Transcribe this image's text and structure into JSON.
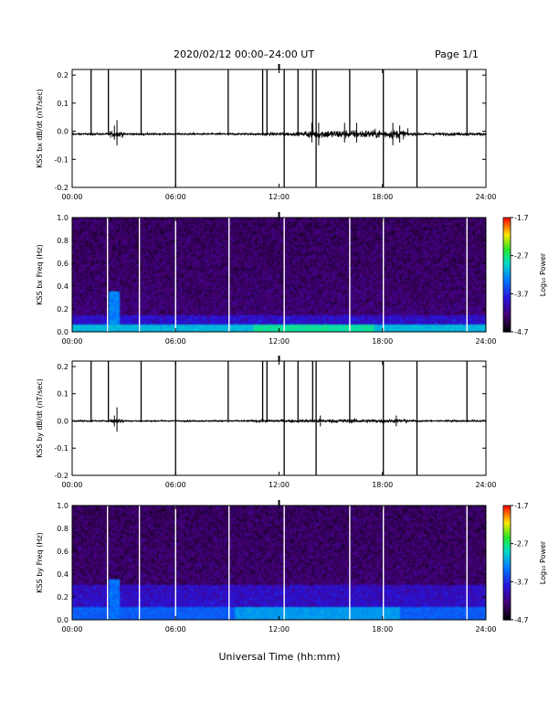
{
  "header": {
    "title": "2020/02/12  00:00–24:00 UT",
    "page": "Page 1/1"
  },
  "xaxis_label": "Universal Time (hh:mm)",
  "colorbar": {
    "label": "Log₁₀ Power",
    "ticks": [
      "-1.7",
      "-2.7",
      "-3.7",
      "-4.7"
    ],
    "range": [
      -4.7,
      -1.7
    ]
  },
  "chart_data": [
    {
      "type": "line",
      "panel": "bx-timeseries",
      "ylabel": "KSS bx dB/dt (nT/sec)",
      "xlim": [
        0,
        24
      ],
      "ylim": [
        -0.2,
        0.22
      ],
      "xticks": [
        "00:00",
        "06:00",
        "12:00",
        "18:00",
        "24:00"
      ],
      "yticks": [
        "0.2",
        "0.1",
        "0.0",
        "-0.1",
        "-0.2"
      ],
      "baseline": -0.01,
      "noise_profile": [
        {
          "from": 0.0,
          "to": 2.2,
          "amp": 0.004
        },
        {
          "from": 2.2,
          "to": 3.0,
          "amp": 0.012
        },
        {
          "from": 3.0,
          "to": 11.0,
          "amp": 0.004
        },
        {
          "from": 11.0,
          "to": 13.5,
          "amp": 0.007
        },
        {
          "from": 13.5,
          "to": 19.5,
          "amp": 0.016
        },
        {
          "from": 19.5,
          "to": 24.0,
          "amp": 0.006
        }
      ],
      "spikes": [
        {
          "t": 2.6,
          "min": -0.05,
          "max": 0.04
        },
        {
          "t": 2.45,
          "min": -0.03,
          "max": 0.02
        },
        {
          "t": 13.9,
          "min": -0.04,
          "max": 0.03
        },
        {
          "t": 14.3,
          "min": -0.05,
          "max": 0.03
        },
        {
          "t": 15.8,
          "min": -0.04,
          "max": 0.03
        },
        {
          "t": 16.5,
          "min": -0.04,
          "max": 0.03
        },
        {
          "t": 18.6,
          "min": -0.05,
          "max": 0.03
        },
        {
          "t": 19.0,
          "min": -0.04,
          "max": 0.02
        }
      ],
      "vlines": [
        {
          "t": 1.1,
          "min": -0.015,
          "max": 0.22
        },
        {
          "t": 2.1,
          "min": -0.015,
          "max": 0.22
        },
        {
          "t": 4.0,
          "min": -0.015,
          "max": 0.22
        },
        {
          "t": 6.0,
          "min": -0.2,
          "max": 0.22
        },
        {
          "t": 9.05,
          "min": -0.015,
          "max": 0.22
        },
        {
          "t": 11.05,
          "min": -0.015,
          "max": 0.22
        },
        {
          "t": 11.3,
          "min": -0.015,
          "max": 0.22
        },
        {
          "t": 12.3,
          "min": -0.2,
          "max": 0.22
        },
        {
          "t": 13.1,
          "min": -0.015,
          "max": 0.22
        },
        {
          "t": 13.95,
          "min": -0.015,
          "max": 0.22
        },
        {
          "t": 14.15,
          "min": -0.2,
          "max": 0.22
        },
        {
          "t": 16.1,
          "min": -0.015,
          "max": 0.22
        },
        {
          "t": 18.05,
          "min": -0.2,
          "max": 0.22
        },
        {
          "t": 20.0,
          "min": -0.2,
          "max": 0.22
        },
        {
          "t": 22.9,
          "min": -0.015,
          "max": 0.22
        }
      ]
    },
    {
      "type": "heatmap",
      "panel": "bx-spectrogram",
      "ylabel": "KSS bx Freq (Hz)",
      "xlim": [
        0,
        24
      ],
      "ylim": [
        0,
        1.0
      ],
      "xticks": [
        "00:00",
        "06:00",
        "12:00",
        "18:00",
        "24:00"
      ],
      "yticks": [
        "1.0",
        "0.8",
        "0.6",
        "0.4",
        "0.2",
        "0.0"
      ],
      "zlim": [
        -4.7,
        -1.7
      ],
      "gaps": [
        2.05,
        3.9,
        6.0,
        9.1,
        12.3,
        16.1,
        18.05,
        22.9
      ],
      "low_freq_band": {
        "max_freq": 0.06,
        "level": -2.8,
        "strong_from": 10.5,
        "strong_to": 17.5
      },
      "burst": {
        "t_from": 2.1,
        "t_to": 2.75,
        "max_freq": 0.35,
        "level": -3.3
      }
    },
    {
      "type": "line",
      "panel": "by-timeseries",
      "ylabel": "KSS by dB/dt (nT/sec)",
      "xlim": [
        0,
        24
      ],
      "ylim": [
        -0.2,
        0.22
      ],
      "xticks": [
        "00:00",
        "06:00",
        "12:00",
        "18:00",
        "24:00"
      ],
      "yticks": [
        "0.2",
        "0.1",
        "0.0",
        "-0.1",
        "-0.2"
      ],
      "baseline": 0.0,
      "noise_profile": [
        {
          "from": 0.0,
          "to": 2.2,
          "amp": 0.003
        },
        {
          "from": 2.2,
          "to": 3.0,
          "amp": 0.01
        },
        {
          "from": 3.0,
          "to": 10.5,
          "amp": 0.003
        },
        {
          "from": 10.5,
          "to": 13.5,
          "amp": 0.006
        },
        {
          "from": 13.5,
          "to": 19.5,
          "amp": 0.008
        },
        {
          "from": 19.5,
          "to": 24.0,
          "amp": 0.004
        }
      ],
      "spikes": [
        {
          "t": 2.6,
          "min": -0.04,
          "max": 0.05
        },
        {
          "t": 2.45,
          "min": -0.02,
          "max": 0.02
        },
        {
          "t": 14.4,
          "min": -0.02,
          "max": 0.02
        },
        {
          "t": 18.8,
          "min": -0.02,
          "max": 0.02
        }
      ],
      "vlines": [
        {
          "t": 1.1,
          "min": -0.005,
          "max": 0.22
        },
        {
          "t": 2.1,
          "min": -0.005,
          "max": 0.22
        },
        {
          "t": 4.0,
          "min": -0.005,
          "max": 0.22
        },
        {
          "t": 6.0,
          "min": -0.2,
          "max": 0.22
        },
        {
          "t": 9.05,
          "min": -0.005,
          "max": 0.22
        },
        {
          "t": 11.05,
          "min": -0.005,
          "max": 0.22
        },
        {
          "t": 11.3,
          "min": -0.005,
          "max": 0.22
        },
        {
          "t": 12.3,
          "min": -0.2,
          "max": 0.22
        },
        {
          "t": 13.1,
          "min": -0.005,
          "max": 0.22
        },
        {
          "t": 13.95,
          "min": -0.005,
          "max": 0.22
        },
        {
          "t": 14.15,
          "min": -0.2,
          "max": 0.22
        },
        {
          "t": 16.1,
          "min": -0.005,
          "max": 0.22
        },
        {
          "t": 18.05,
          "min": -0.2,
          "max": 0.22
        },
        {
          "t": 20.0,
          "min": -0.2,
          "max": 0.22
        },
        {
          "t": 22.9,
          "min": -0.005,
          "max": 0.22
        }
      ]
    },
    {
      "type": "heatmap",
      "panel": "by-spectrogram",
      "ylabel": "KSS by Freq (Hz)",
      "xlim": [
        0,
        24
      ],
      "ylim": [
        0,
        1.0
      ],
      "xticks": [
        "00:00",
        "06:00",
        "12:00",
        "18:00",
        "24:00"
      ],
      "yticks": [
        "1.0",
        "0.8",
        "0.6",
        "0.4",
        "0.2",
        "0.0"
      ],
      "zlim": [
        -4.7,
        -1.7
      ],
      "gaps": [
        2.05,
        3.9,
        6.0,
        9.1,
        12.3,
        16.1,
        18.05,
        22.9
      ],
      "low_freq_band": {
        "max_freq": 0.12,
        "level": -3.2,
        "strong_from": 9.5,
        "strong_to": 19.0
      },
      "burst": {
        "t_from": 2.1,
        "t_to": 2.75,
        "max_freq": 0.35,
        "level": -3.4
      }
    }
  ]
}
